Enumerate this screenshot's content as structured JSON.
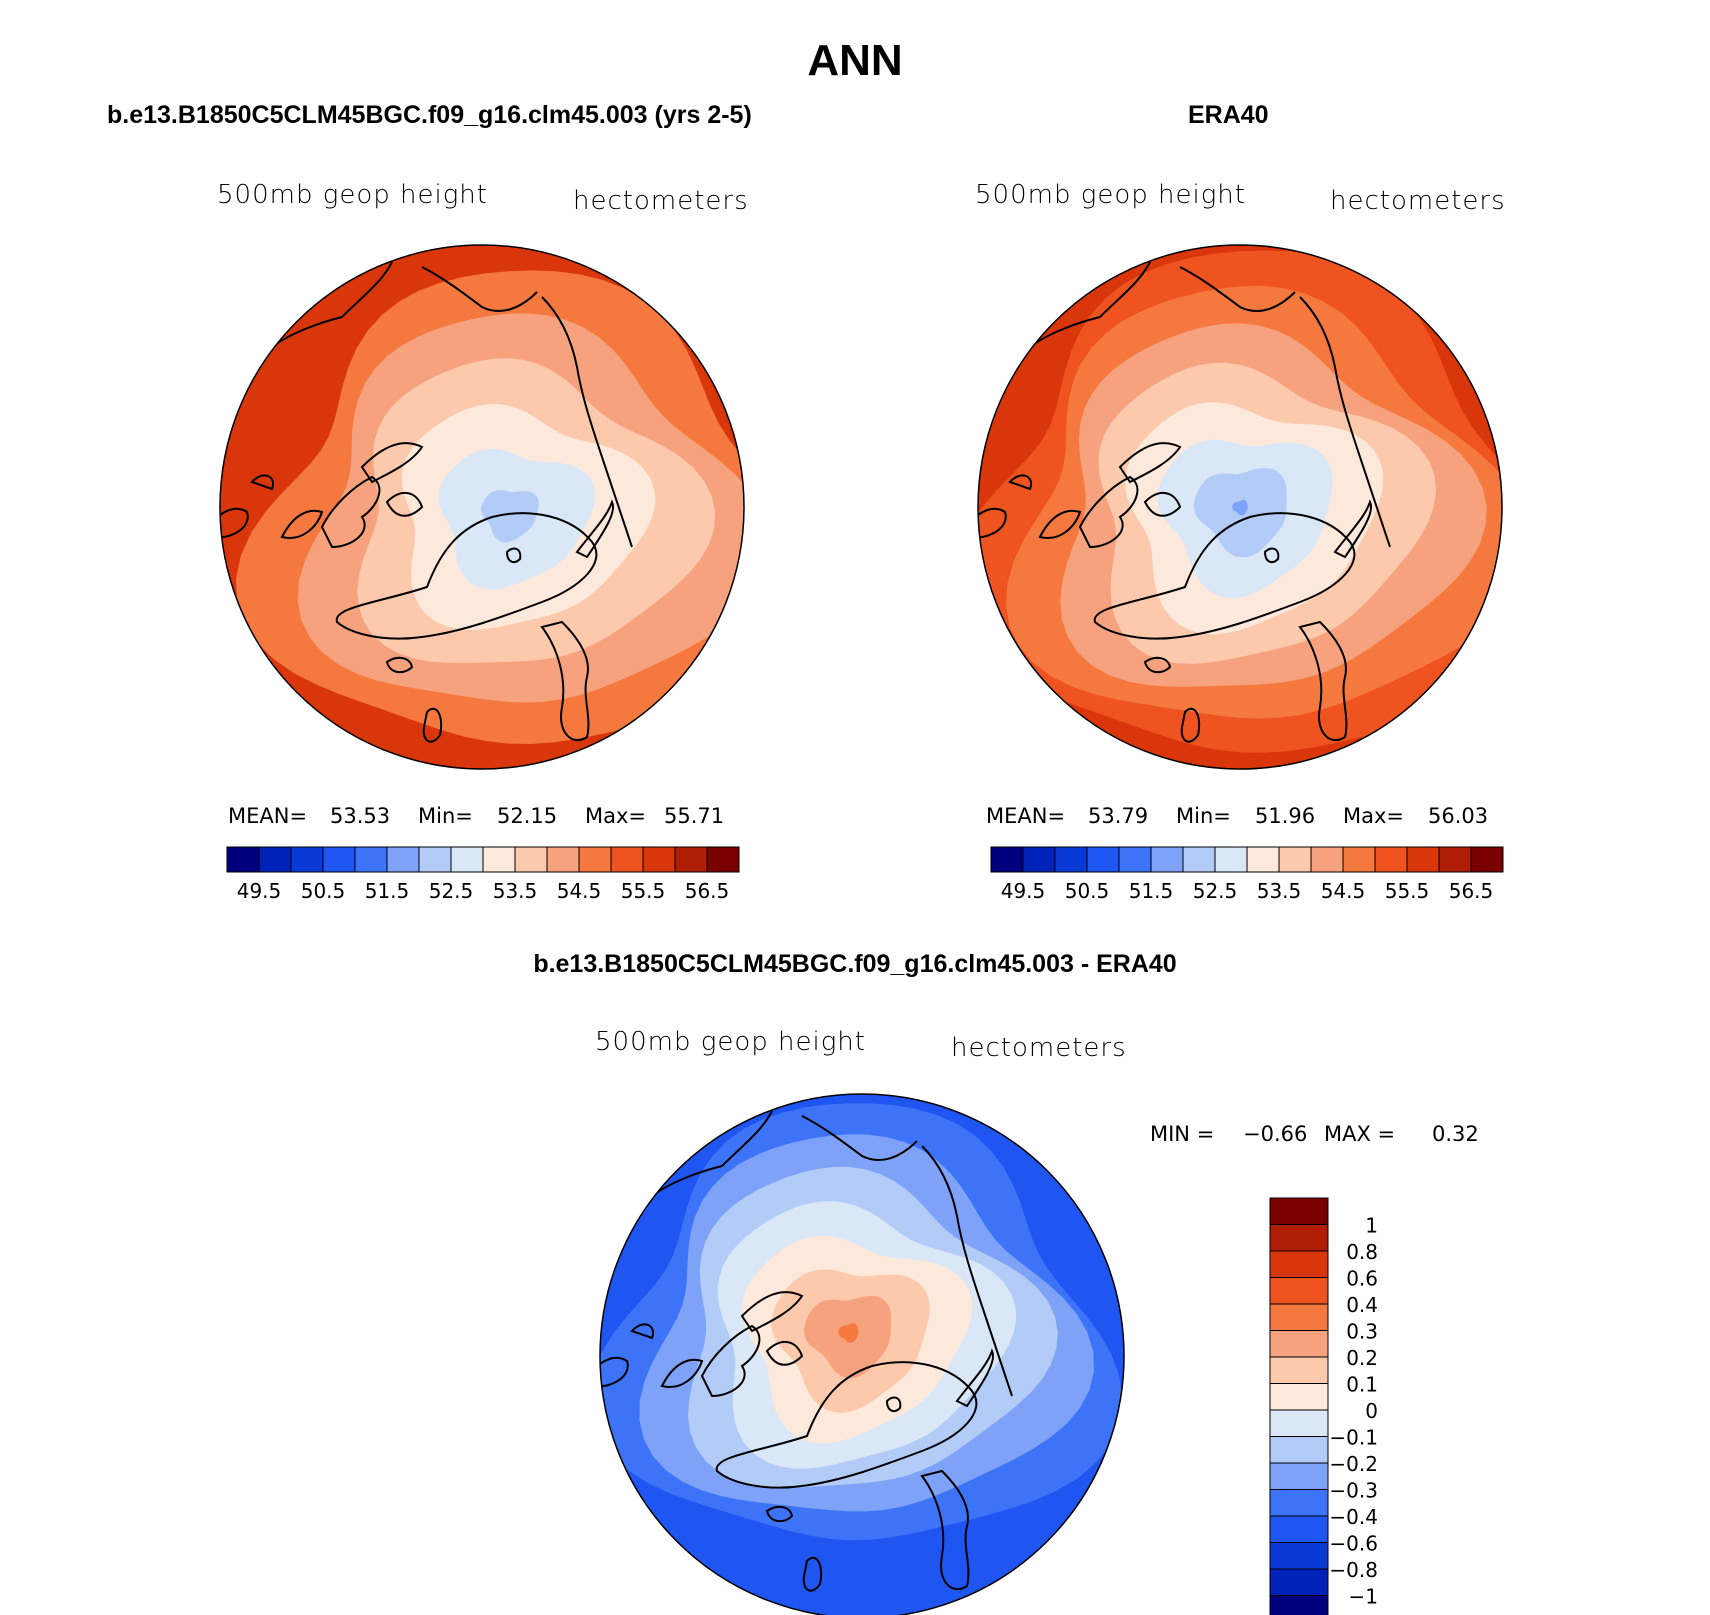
{
  "page": {
    "main_title": "ANN",
    "left_panel_title": "b.e13.B1850C5CLM45BGC.f09_g16.clm45.003 (yrs 2-5)",
    "right_panel_title": "ERA40",
    "diff_panel_title": "b.e13.B1850C5CLM45BGC.f09_g16.clm45.003 - ERA40"
  },
  "chart_data": [
    {
      "type": "heatmap",
      "name": "model",
      "subtitle_left": "500mb geop height",
      "subtitle_right": "hectometers",
      "stats": {
        "mean_label": "MEAN=",
        "mean": "53.53",
        "min_label": "Min=",
        "min": "52.15",
        "max_label": "Max=",
        "max": "55.71"
      },
      "colorbar": {
        "colors": [
          "#00007f",
          "#0022b8",
          "#0a3ad6",
          "#1f55f0",
          "#3d74f7",
          "#7ea2f7",
          "#b3cbf7",
          "#d9e7f7",
          "#fde8dc",
          "#fcc9ad",
          "#f7a27e",
          "#f5793f",
          "#ef531f",
          "#d9360c",
          "#b01e05",
          "#7a0000"
        ],
        "labels": [
          "49.5",
          "50.5",
          "51.5",
          "52.5",
          "53.5",
          "54.5",
          "55.5",
          "56.5"
        ]
      },
      "field": {
        "pole_value": 52.2,
        "pole_shift": [
          0.1,
          0.02
        ],
        "edge_value": 55.5,
        "skew": 0.35
      }
    },
    {
      "type": "heatmap",
      "name": "era40",
      "subtitle_left": "500mb geop height",
      "subtitle_right": "hectometers",
      "stats": {
        "mean_label": "MEAN=",
        "mean": "53.79",
        "min_label": "Min=",
        "min": "51.96",
        "max_label": "Max=",
        "max": "56.03"
      },
      "colorbar": {
        "colors": [
          "#00007f",
          "#0022b8",
          "#0a3ad6",
          "#1f55f0",
          "#3d74f7",
          "#7ea2f7",
          "#b3cbf7",
          "#d9e7f7",
          "#fde8dc",
          "#fcc9ad",
          "#f7a27e",
          "#f5793f",
          "#ef531f",
          "#d9360c",
          "#b01e05",
          "#7a0000"
        ],
        "labels": [
          "49.5",
          "50.5",
          "51.5",
          "52.5",
          "53.5",
          "54.5",
          "55.5",
          "56.5"
        ]
      },
      "field": {
        "pole_value": 51.9,
        "pole_shift": [
          0.0,
          0.0
        ],
        "edge_value": 55.9,
        "skew": 0.35
      }
    },
    {
      "type": "heatmap",
      "name": "difference",
      "subtitle_left": "500mb geop height",
      "subtitle_right": "hectometers",
      "stats": {
        "min_label": "MIN =",
        "min": "−0.66",
        "max_label": "MAX =",
        "max": "0.32"
      },
      "colorbar": {
        "colors": [
          "#7a0000",
          "#b01e05",
          "#d9360c",
          "#ef531f",
          "#f5793f",
          "#f7a27e",
          "#fcc9ad",
          "#fde8dc",
          "#d9e7f7",
          "#b3cbf7",
          "#7ea2f7",
          "#3d74f7",
          "#1f55f0",
          "#0a3ad6",
          "#0022b8",
          "#00007f"
        ],
        "labels": [
          "1",
          "0.8",
          "0.6",
          "0.4",
          "0.3",
          "0.2",
          "0.1",
          "0",
          "−0.1",
          "−0.2",
          "−0.3",
          "−0.4",
          "−0.6",
          "−0.8",
          "−1"
        ]
      },
      "field": {
        "pole_value": 0.33,
        "pole_shift": [
          -0.05,
          -0.09
        ],
        "edge_value": -0.6
      }
    }
  ]
}
